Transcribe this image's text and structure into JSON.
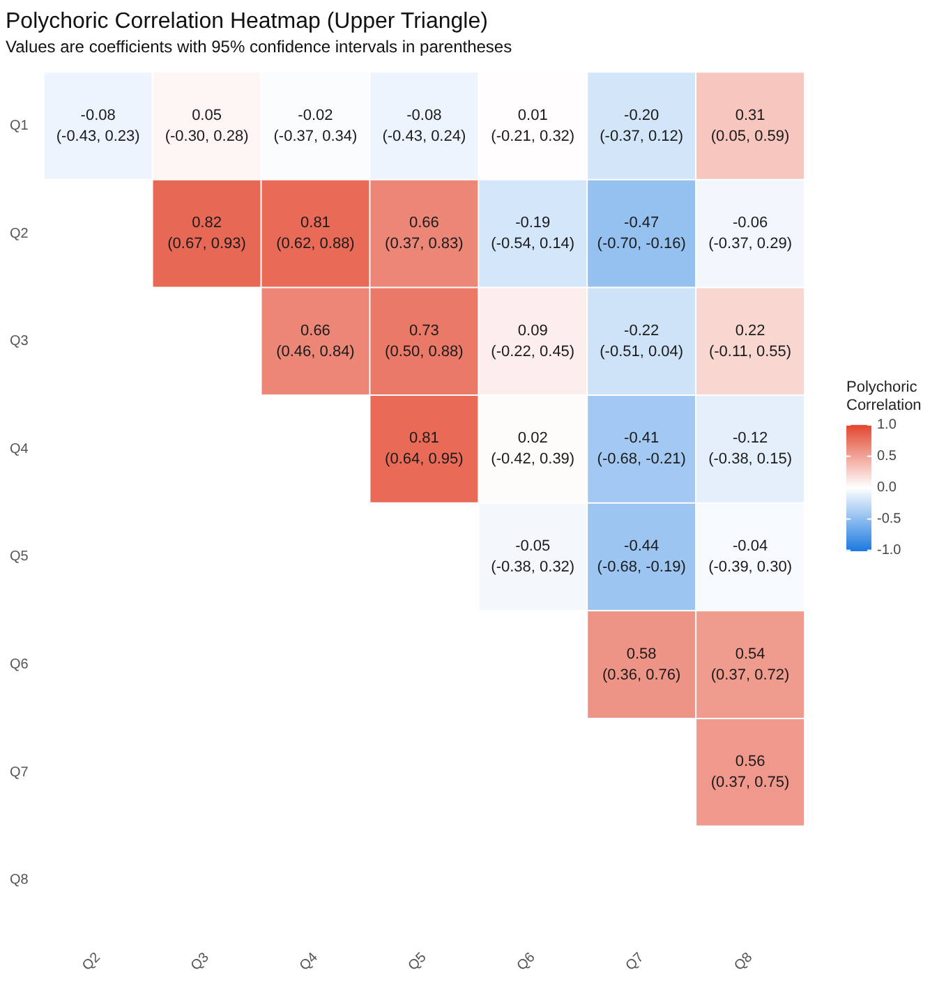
{
  "chart_data": {
    "type": "heatmap",
    "title": "Polychoric Correlation Heatmap (Upper Triangle)",
    "subtitle": "Values are coefficients with 95% confidence intervals in parentheses",
    "clabel": "Polychoric Correlation",
    "categories": [
      "Q2",
      "Q3",
      "Q4",
      "Q5",
      "Q6",
      "Q7",
      "Q8"
    ],
    "y_categories": [
      "Q1",
      "Q2",
      "Q3",
      "Q4",
      "Q5",
      "Q6",
      "Q7",
      "Q8"
    ],
    "cells": [
      [
        -0.08,
        0.05,
        -0.02,
        -0.08,
        0.01,
        -0.2,
        0.31
      ],
      [
        null,
        0.82,
        0.81,
        0.66,
        -0.19,
        -0.47,
        -0.06
      ],
      [
        null,
        null,
        0.66,
        0.73,
        0.09,
        -0.22,
        0.22
      ],
      [
        null,
        null,
        null,
        0.81,
        0.02,
        -0.41,
        -0.12
      ],
      [
        null,
        null,
        null,
        null,
        -0.05,
        -0.44,
        -0.04
      ],
      [
        null,
        null,
        null,
        null,
        null,
        0.58,
        0.54
      ],
      [
        null,
        null,
        null,
        null,
        null,
        null,
        0.56
      ],
      [
        null,
        null,
        null,
        null,
        null,
        null,
        null
      ]
    ],
    "cell_labels": [
      [
        "-0.08\n(-0.43, 0.23)",
        "0.05\n(-0.30, 0.28)",
        "-0.02\n(-0.37, 0.34)",
        "-0.08\n(-0.43, 0.24)",
        "0.01\n(-0.21, 0.32)",
        "-0.20\n(-0.37, 0.12)",
        "0.31\n(0.05, 0.59)"
      ],
      [
        null,
        "0.82\n(0.67, 0.93)",
        "0.81\n(0.62, 0.88)",
        "0.66\n(0.37, 0.83)",
        "-0.19\n(-0.54, 0.14)",
        "-0.47\n(-0.70, -0.16)",
        "-0.06\n(-0.37, 0.29)"
      ],
      [
        null,
        null,
        "0.66\n(0.46, 0.84)",
        "0.73\n(0.50, 0.88)",
        "0.09\n(-0.22, 0.45)",
        "-0.22\n(-0.51, 0.04)",
        "0.22\n(-0.11, 0.55)"
      ],
      [
        null,
        null,
        null,
        "0.81\n(0.64, 0.95)",
        "0.02\n(-0.42, 0.39)",
        "-0.41\n(-0.68, -0.21)",
        "-0.12\n(-0.38, 0.15)"
      ],
      [
        null,
        null,
        null,
        null,
        "-0.05\n(-0.38, 0.32)",
        "-0.44\n(-0.68, -0.19)",
        "-0.04\n(-0.39, 0.30)"
      ],
      [
        null,
        null,
        null,
        null,
        null,
        "0.58\n(0.36, 0.76)",
        "0.54\n(0.37, 0.72)"
      ],
      [
        null,
        null,
        null,
        null,
        null,
        null,
        "0.56\n(0.37, 0.75)"
      ],
      [
        null,
        null,
        null,
        null,
        null,
        null,
        null
      ]
    ],
    "colors": [
      "#1e7be0",
      "#ffffff",
      "#e2472f"
    ],
    "clim": [
      -1,
      1
    ],
    "cticks": [
      {
        "value": 1,
        "label": "1.0"
      },
      {
        "value": 0.5,
        "label": "0.5"
      },
      {
        "value": 0,
        "label": "0.0"
      },
      {
        "value": -0.5,
        "label": "-0.5"
      },
      {
        "value": -1,
        "label": "-1.0"
      }
    ]
  }
}
